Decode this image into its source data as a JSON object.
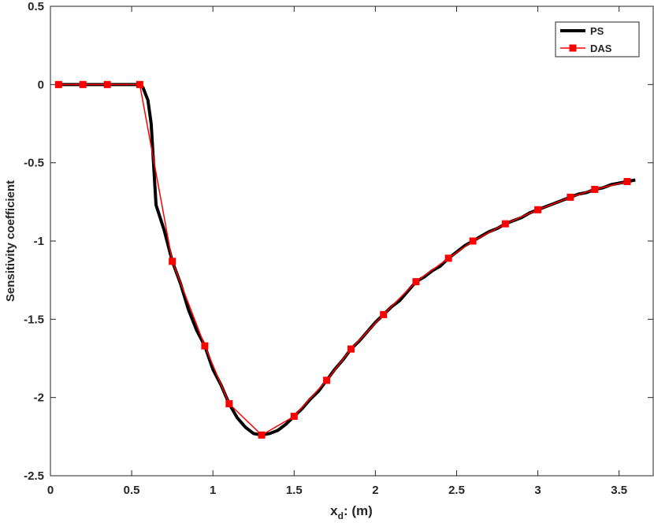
{
  "chart_data": {
    "type": "line",
    "ylabel": "Sensitivity coefficient",
    "xlabel": [
      "x",
      "d",
      ": (m)"
    ],
    "xlim": [
      0,
      3.71
    ],
    "ylim": [
      -2.5,
      0.5
    ],
    "xticks": [
      0,
      0.5,
      1,
      1.5,
      2,
      2.5,
      3,
      3.5
    ],
    "yticks": [
      -2.5,
      -2,
      -1.5,
      -1,
      -0.5,
      0,
      0.5
    ],
    "legend": "upper right",
    "series": [
      {
        "name": "PS",
        "color": "#000000",
        "marker": "none",
        "x": [
          0.05,
          0.2,
          0.35,
          0.55,
          0.57,
          0.6,
          0.62,
          0.65,
          0.7,
          0.75,
          0.8,
          0.85,
          0.9,
          0.95,
          1.0,
          1.05,
          1.1,
          1.15,
          1.2,
          1.25,
          1.3,
          1.35,
          1.4,
          1.45,
          1.5,
          1.55,
          1.6,
          1.65,
          1.7,
          1.75,
          1.8,
          1.85,
          1.9,
          1.95,
          2.0,
          2.05,
          2.1,
          2.15,
          2.2,
          2.25,
          2.3,
          2.35,
          2.4,
          2.45,
          2.5,
          2.55,
          2.6,
          2.65,
          2.7,
          2.75,
          2.8,
          2.85,
          2.9,
          2.95,
          3.0,
          3.05,
          3.1,
          3.15,
          3.2,
          3.25,
          3.3,
          3.35,
          3.4,
          3.45,
          3.5,
          3.55,
          3.6
        ],
        "values": [
          0,
          0,
          0,
          0,
          -0.02,
          -0.1,
          -0.25,
          -0.77,
          -0.93,
          -1.13,
          -1.27,
          -1.44,
          -1.57,
          -1.67,
          -1.82,
          -1.92,
          -2.04,
          -2.13,
          -2.19,
          -2.23,
          -2.24,
          -2.23,
          -2.21,
          -2.17,
          -2.12,
          -2.07,
          -2.01,
          -1.96,
          -1.89,
          -1.82,
          -1.76,
          -1.69,
          -1.64,
          -1.58,
          -1.52,
          -1.47,
          -1.42,
          -1.38,
          -1.32,
          -1.26,
          -1.23,
          -1.19,
          -1.16,
          -1.11,
          -1.07,
          -1.03,
          -1.0,
          -0.97,
          -0.94,
          -0.92,
          -0.89,
          -0.87,
          -0.85,
          -0.82,
          -0.8,
          -0.78,
          -0.76,
          -0.74,
          -0.72,
          -0.7,
          -0.69,
          -0.67,
          -0.66,
          -0.64,
          -0.63,
          -0.62,
          -0.61
        ]
      },
      {
        "name": "DAS",
        "color": "#ff0000",
        "marker": "square",
        "x": [
          0.05,
          0.2,
          0.35,
          0.55,
          0.75,
          0.95,
          1.1,
          1.3,
          1.5,
          1.7,
          1.85,
          2.05,
          2.25,
          2.45,
          2.6,
          2.8,
          3.0,
          3.2,
          3.35,
          3.55
        ],
        "values": [
          0,
          0,
          0,
          0,
          -1.13,
          -1.67,
          -2.04,
          -2.24,
          -2.12,
          -1.89,
          -1.69,
          -1.47,
          -1.26,
          -1.11,
          -1.0,
          -0.89,
          -0.8,
          -0.72,
          -0.67,
          -0.62
        ]
      }
    ]
  }
}
